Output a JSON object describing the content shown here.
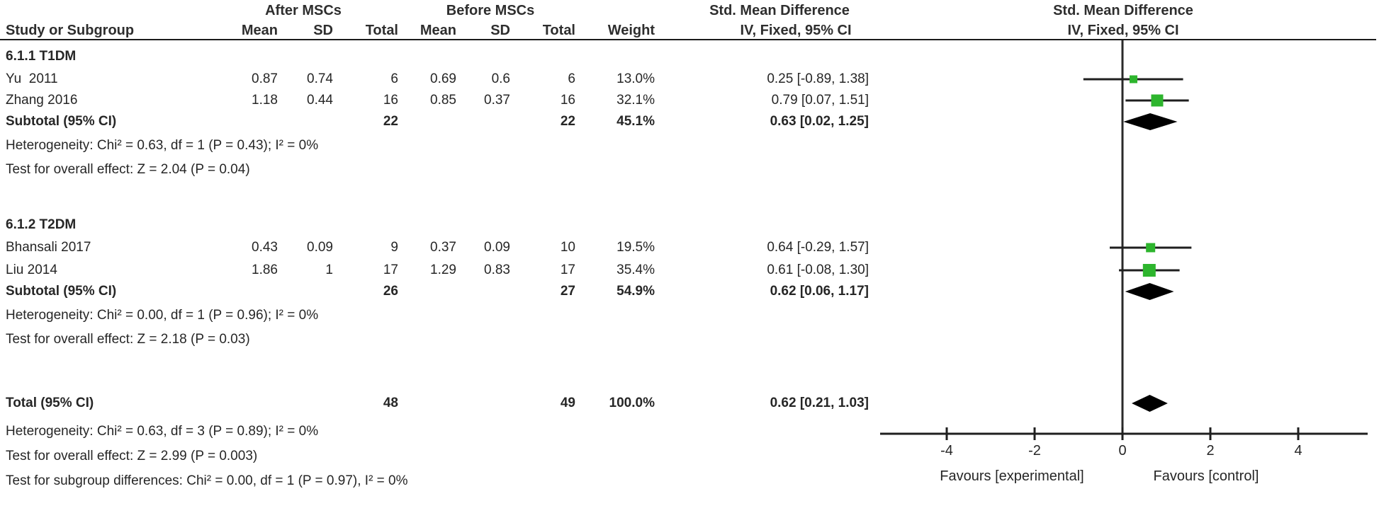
{
  "colors": {
    "marker_green": "#2db52d",
    "diamond_black": "#000000",
    "line_dark": "#1f1f1f"
  },
  "header": {
    "group_after": "After MSCs",
    "group_before": "Before MSCs",
    "effect_left": "Std. Mean Difference",
    "effect_right": "Std. Mean Difference",
    "study_col": "Study or Subgroup",
    "mean1": "Mean",
    "sd1": "SD",
    "total1": "Total",
    "mean2": "Mean",
    "sd2": "SD",
    "total2": "Total",
    "weight": "Weight",
    "ci_left": "IV, Fixed, 95% CI",
    "ci_right": "IV, Fixed, 95% CI"
  },
  "table": {
    "t1dm_label": "6.1.1 T1DM",
    "yu": {
      "study": "Yu  2011",
      "mean1": "0.87",
      "sd1": "0.74",
      "total1": "6",
      "mean2": "0.69",
      "sd2": "0.6",
      "total2": "6",
      "weight": "13.0%",
      "ci": "0.25 [-0.89, 1.38]"
    },
    "zhang": {
      "study": "Zhang 2016",
      "mean1": "1.18",
      "sd1": "0.44",
      "total1": "16",
      "mean2": "0.85",
      "sd2": "0.37",
      "total2": "16",
      "weight": "32.1%",
      "ci": "0.79 [0.07, 1.51]"
    },
    "subtotal1": {
      "study": "Subtotal (95% CI)",
      "total1": "22",
      "total2": "22",
      "weight": "45.1%",
      "ci": "0.63 [0.02, 1.25]"
    },
    "het1": "Heterogeneity: Chi² = 0.63, df = 1 (P = 0.43); I² = 0%",
    "test1": "Test for overall effect: Z = 2.04 (P = 0.04)",
    "t2dm_label": "6.1.2 T2DM",
    "bhansali": {
      "study": "Bhansali 2017",
      "mean1": "0.43",
      "sd1": "0.09",
      "total1": "9",
      "mean2": "0.37",
      "sd2": "0.09",
      "total2": "10",
      "weight": "19.5%",
      "ci": "0.64 [-0.29, 1.57]"
    },
    "liu": {
      "study": "Liu 2014",
      "mean1": "1.86",
      "sd1": "1",
      "total1": "17",
      "mean2": "1.29",
      "sd2": "0.83",
      "total2": "17",
      "weight": "35.4%",
      "ci": "0.61 [-0.08, 1.30]"
    },
    "subtotal2": {
      "study": "Subtotal (95% CI)",
      "total1": "26",
      "total2": "27",
      "weight": "54.9%",
      "ci": "0.62 [0.06, 1.17]"
    },
    "het2": "Heterogeneity: Chi² = 0.00, df = 1 (P = 0.96); I² = 0%",
    "test2": "Test for overall effect: Z = 2.18 (P = 0.03)",
    "total": {
      "study": "Total (95% CI)",
      "total1": "48",
      "total2": "49",
      "weight": "100.0%",
      "ci": "0.62 [0.21, 1.03]"
    },
    "het_total": "Heterogeneity: Chi² = 0.63, df = 3 (P = 0.89); I² = 0%",
    "test_total": "Test for overall effect: Z = 2.99 (P = 0.003)",
    "test_subgroup": "Test for subgroup differences: Chi² = 0.00, df = 1 (P = 0.97), I² = 0%"
  },
  "axis": {
    "ticks": [
      "-4",
      "-2",
      "0",
      "2",
      "4"
    ],
    "favours_left": "Favours [experimental]",
    "favours_right": "Favours [control]"
  },
  "chart_data": {
    "type": "forest",
    "title": "",
    "effect_label": "Std. Mean Difference",
    "method_label": "IV, Fixed, 95% CI",
    "x_axis": {
      "ticks": [
        -4,
        -2,
        0,
        2,
        4
      ],
      "range_shown": [
        -5.5,
        5.6
      ],
      "zero_line": 0,
      "label_left": "Favours [experimental]",
      "label_right": "Favours [control]"
    },
    "subgroups": [
      {
        "name": "6.1.1 T1DM",
        "studies": [
          {
            "name": "Yu 2011",
            "after_mean": 0.87,
            "after_sd": 0.74,
            "after_total": 6,
            "before_mean": 0.69,
            "before_sd": 0.6,
            "before_total": 6,
            "weight_pct": 13.0,
            "smd": 0.25,
            "ci_low": -0.89,
            "ci_high": 1.38
          },
          {
            "name": "Zhang 2016",
            "after_mean": 1.18,
            "after_sd": 0.44,
            "after_total": 16,
            "before_mean": 0.85,
            "before_sd": 0.37,
            "before_total": 16,
            "weight_pct": 32.1,
            "smd": 0.79,
            "ci_low": 0.07,
            "ci_high": 1.51
          }
        ],
        "subtotal": {
          "after_total": 22,
          "before_total": 22,
          "weight_pct": 45.1,
          "smd": 0.63,
          "ci_low": 0.02,
          "ci_high": 1.25
        },
        "heterogeneity": "Chi² = 0.63, df = 1 (P = 0.43); I² = 0%",
        "overall_effect": "Z = 2.04 (P = 0.04)"
      },
      {
        "name": "6.1.2 T2DM",
        "studies": [
          {
            "name": "Bhansali 2017",
            "after_mean": 0.43,
            "after_sd": 0.09,
            "after_total": 9,
            "before_mean": 0.37,
            "before_sd": 0.09,
            "before_total": 10,
            "weight_pct": 19.5,
            "smd": 0.64,
            "ci_low": -0.29,
            "ci_high": 1.57
          },
          {
            "name": "Liu 2014",
            "after_mean": 1.86,
            "after_sd": 1,
            "after_total": 17,
            "before_mean": 1.29,
            "before_sd": 0.83,
            "before_total": 17,
            "weight_pct": 35.4,
            "smd": 0.61,
            "ci_low": -0.08,
            "ci_high": 1.3
          }
        ],
        "subtotal": {
          "after_total": 26,
          "before_total": 27,
          "weight_pct": 54.9,
          "smd": 0.62,
          "ci_low": 0.06,
          "ci_high": 1.17
        },
        "heterogeneity": "Chi² = 0.00, df = 1 (P = 0.96); I² = 0%",
        "overall_effect": "Z = 2.18 (P = 0.03)"
      }
    ],
    "total": {
      "after_total": 48,
      "before_total": 49,
      "weight_pct": 100.0,
      "smd": 0.62,
      "ci_low": 0.21,
      "ci_high": 1.03
    },
    "total_heterogeneity": "Chi² = 0.63, df = 3 (P = 0.89); I² = 0%",
    "total_overall_effect": "Z = 2.99 (P = 0.003)",
    "subgroup_differences": "Chi² = 0.00, df = 1 (P = 0.97), I² = 0%"
  }
}
